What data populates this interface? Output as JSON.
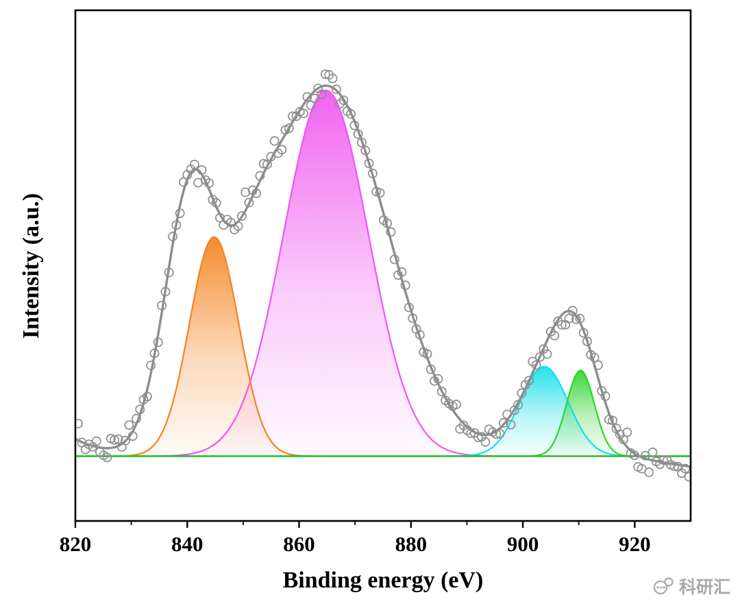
{
  "chart_data": {
    "type": "scatter",
    "description": "XPS spectrum with raw data (open circles), gray fit envelope, four gaussian fitted peak areas and a flat green baseline",
    "title": "",
    "xlabel": "Binding energy (eV)",
    "ylabel": "Intensity (a.u.)",
    "xlim": [
      820,
      930
    ],
    "ylim": [
      -0.17,
      1.17
    ],
    "x_ticks": [
      820,
      840,
      860,
      880,
      900,
      920
    ],
    "x_minor_ticks": [
      830,
      850,
      870,
      890,
      910
    ],
    "grid": false,
    "legend": "none",
    "frame_color": "#000000",
    "envelope_color": "#8c8c8c",
    "baseline": {
      "value": 0,
      "color": "#20c020"
    },
    "background_tail": {
      "amplitude": 0.045,
      "decay": 5.5
    },
    "right_edge_dip": {
      "start": 918,
      "amplitude": -0.028
    },
    "envelope_components": [
      {
        "center": 840.6,
        "amplitude": 0.65,
        "sigma": 4.6
      },
      {
        "center": 851.5,
        "amplitude": 0.18,
        "sigma": 4.5
      },
      {
        "center": 865.0,
        "amplitude": 0.97,
        "sigma": 11.0
      },
      {
        "center": 904.0,
        "amplitude": 0.2,
        "sigma": 5.0
      },
      {
        "center": 909.8,
        "amplitude": 0.26,
        "sigma": 4.0
      }
    ],
    "fitted_peaks": [
      {
        "name": "orange-peak",
        "color": "#f5821f",
        "center": 844.8,
        "amplitude": 0.575,
        "sigma": 4.4
      },
      {
        "name": "magenta-peak",
        "color": "#f056f0",
        "center": 864.8,
        "amplitude": 0.96,
        "sigma": 7.6
      },
      {
        "name": "cyan-peak",
        "color": "#12dfe8",
        "center": 903.8,
        "amplitude": 0.235,
        "sigma": 4.3
      },
      {
        "name": "green-peak",
        "color": "#2cd42c",
        "center": 910.3,
        "amplitude": 0.225,
        "sigma": 2.5
      }
    ],
    "scatter": {
      "marker": "open-circle",
      "color": "#8e8e8e",
      "radius": 6.1,
      "step_ev": 0.65,
      "noise_sigma": 0.016,
      "seed": 7
    }
  },
  "watermark": {
    "text": "科研汇"
  }
}
